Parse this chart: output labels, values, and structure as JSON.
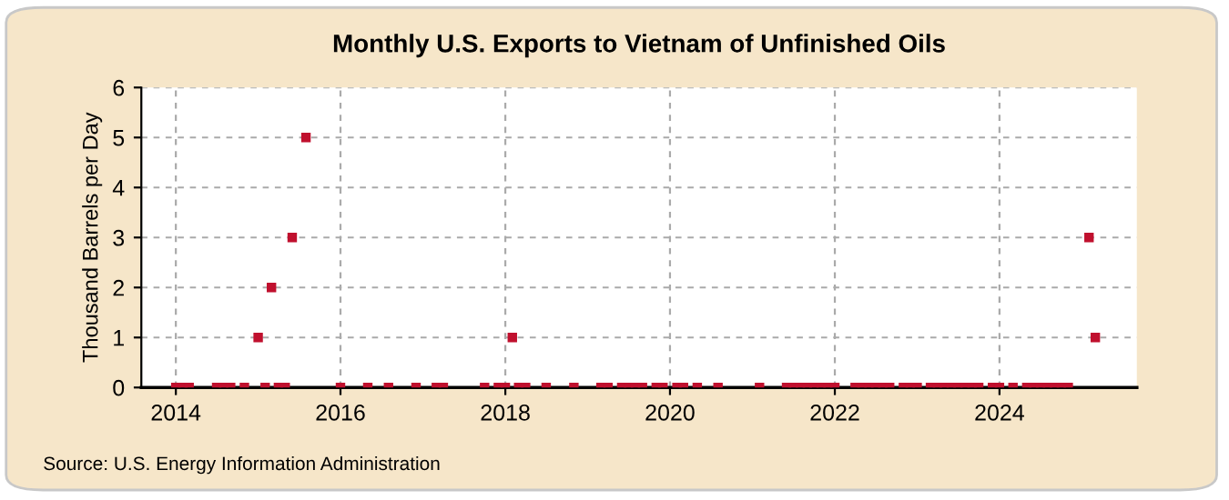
{
  "chart_data": {
    "type": "scatter",
    "title": "Monthly U.S. Exports to Vietnam of Unfinished Oils",
    "ylabel": "Thousand Barrels per Day",
    "x": [
      "2014-01",
      "2014-02",
      "2014-03",
      "2014-07",
      "2014-08",
      "2014-09",
      "2014-11",
      "2015-01",
      "2015-02",
      "2015-03",
      "2015-04",
      "2015-05",
      "2015-06",
      "2015-08",
      "2016-01",
      "2016-05",
      "2016-08",
      "2016-12",
      "2017-03",
      "2017-04",
      "2017-10",
      "2017-12",
      "2018-01",
      "2018-02",
      "2018-03",
      "2018-04",
      "2018-07",
      "2018-11",
      "2019-03",
      "2019-04",
      "2019-06",
      "2019-07",
      "2019-08",
      "2019-09",
      "2019-11",
      "2019-12",
      "2020-02",
      "2020-03",
      "2020-05",
      "2020-08",
      "2021-02",
      "2021-06",
      "2021-07",
      "2021-08",
      "2021-09",
      "2021-10",
      "2021-11",
      "2021-12",
      "2022-01",
      "2022-04",
      "2022-05",
      "2022-06",
      "2022-07",
      "2022-08",
      "2022-09",
      "2022-11",
      "2022-12",
      "2023-01",
      "2023-03",
      "2023-04",
      "2023-05",
      "2023-06",
      "2023-07",
      "2023-08",
      "2023-09",
      "2023-10",
      "2023-12",
      "2024-01",
      "2024-03",
      "2024-05",
      "2024-06",
      "2024-07",
      "2024-08",
      "2024-09",
      "2024-10",
      "2024-11",
      "2025-02",
      "2025-03"
    ],
    "series": [
      {
        "color": "#c0102e",
        "values": [
          0,
          0,
          0,
          0,
          0,
          0,
          0,
          1,
          0,
          2,
          0,
          0,
          3,
          5,
          0,
          0,
          0,
          0,
          0,
          0,
          0,
          0,
          0,
          1,
          0,
          0,
          0,
          0,
          0,
          0,
          0,
          0,
          0,
          0,
          0,
          0,
          0,
          0,
          0,
          0,
          0,
          0,
          0,
          0,
          0,
          0,
          0,
          0,
          0,
          0,
          0,
          0,
          0,
          0,
          0,
          0,
          0,
          0,
          0,
          0,
          0,
          0,
          0,
          0,
          0,
          0,
          0,
          0,
          0,
          0,
          0,
          0,
          0,
          0,
          0,
          0,
          3,
          1
        ]
      }
    ],
    "xlim": [
      "2013-08",
      "2025-09"
    ],
    "xticks": [
      "2014",
      "2016",
      "2018",
      "2020",
      "2022",
      "2024"
    ],
    "ylim": [
      0,
      6
    ],
    "yticks": [
      0,
      1,
      2,
      3,
      4,
      5,
      6
    ],
    "grid": true,
    "marker": "square",
    "annotations": [
      "Source: U.S. Energy Information Administration"
    ]
  }
}
